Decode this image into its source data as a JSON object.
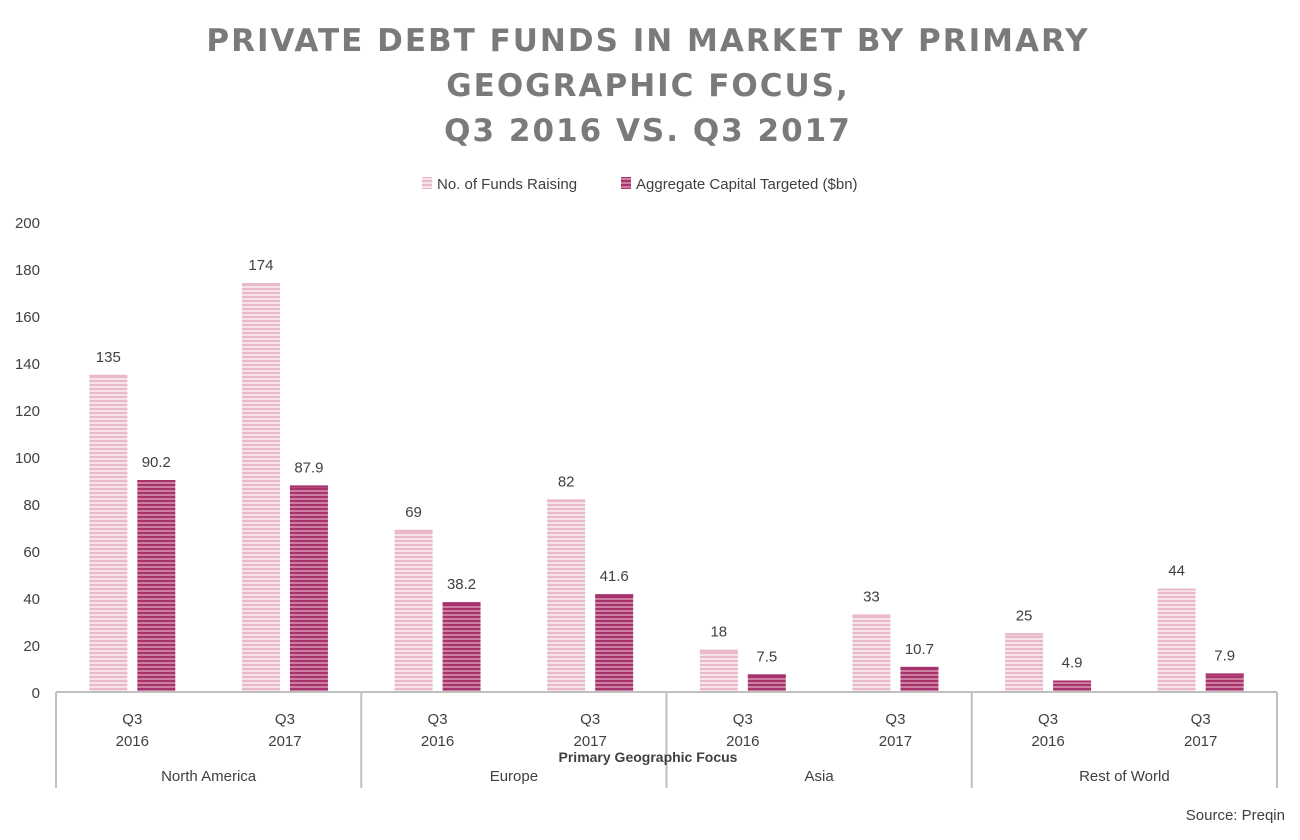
{
  "colors": {
    "funds": "#e9b8cb",
    "funds_stripe": "#ffffff",
    "capital": "#a8336c",
    "capital_stripe": "#e6b1c8",
    "axis": "#bfbfbf",
    "title": "#7a7a7a",
    "text": "#404040"
  },
  "chart_data": {
    "type": "bar",
    "title_lines": [
      "PRIVATE DEBT FUNDS IN MARKET BY PRIMARY",
      "GEOGRAPHIC FOCUS,",
      "Q3 2016 VS. Q3 2017"
    ],
    "ylim": [
      0,
      200
    ],
    "yticks": [
      0,
      20,
      40,
      60,
      80,
      100,
      120,
      140,
      160,
      180,
      200
    ],
    "xlabel": "Primary Geographic Focus",
    "groups": [
      "North America",
      "Europe",
      "Asia",
      "Rest of World"
    ],
    "periods": [
      {
        "line1": "Q3",
        "line2": "2016"
      },
      {
        "line1": "Q3",
        "line2": "2017"
      }
    ],
    "series": [
      {
        "name": "No. of Funds Raising",
        "values": [
          135,
          174,
          69,
          82,
          18,
          33,
          25,
          44
        ],
        "labels": [
          "135",
          "174",
          "69",
          "82",
          "18",
          "33",
          "25",
          "44"
        ]
      },
      {
        "name": "Aggregate Capital Targeted ($bn)",
        "values": [
          90.2,
          87.9,
          38.2,
          41.6,
          7.5,
          10.7,
          4.9,
          7.9
        ],
        "labels": [
          "90.2",
          "87.9",
          "38.2",
          "41.6",
          "7.5",
          "10.7",
          "4.9",
          "7.9"
        ]
      }
    ],
    "legend": "top",
    "grid": false,
    "source": "Source: Preqin"
  }
}
